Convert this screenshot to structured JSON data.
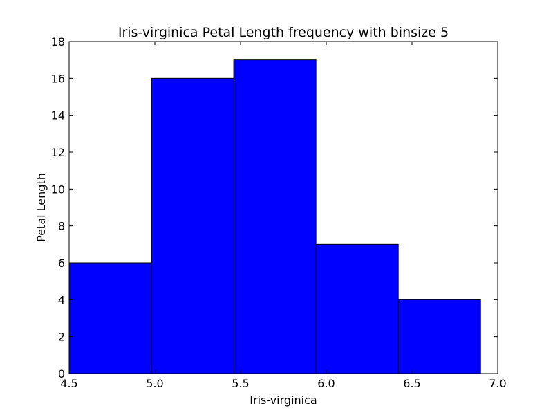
{
  "chart_data": {
    "type": "bar",
    "title": "Iris-virginica Petal Length frequency with binsize 5",
    "xlabel": "Iris-virginica",
    "ylabel": "Petal Length",
    "xlim": [
      4.5,
      7.0
    ],
    "ylim": [
      0,
      18
    ],
    "x_ticks": [
      4.5,
      5.0,
      5.5,
      6.0,
      6.5,
      7.0
    ],
    "x_tick_labels": [
      "4.5",
      "5.0",
      "5.5",
      "6.0",
      "6.5",
      "7.0"
    ],
    "y_ticks": [
      0,
      2,
      4,
      6,
      8,
      10,
      12,
      14,
      16,
      18
    ],
    "y_tick_labels": [
      "0",
      "2",
      "4",
      "6",
      "8",
      "10",
      "12",
      "14",
      "16",
      "18"
    ],
    "bins": [
      {
        "start": 4.5,
        "end": 4.98,
        "value": 6
      },
      {
        "start": 4.98,
        "end": 5.46,
        "value": 16
      },
      {
        "start": 5.46,
        "end": 5.94,
        "value": 17
      },
      {
        "start": 5.94,
        "end": 6.42,
        "value": 7
      },
      {
        "start": 6.42,
        "end": 6.9,
        "value": 4
      }
    ],
    "bar_color": "#0000ff",
    "edge_color": "#000000",
    "grid": false,
    "legend": "none"
  }
}
